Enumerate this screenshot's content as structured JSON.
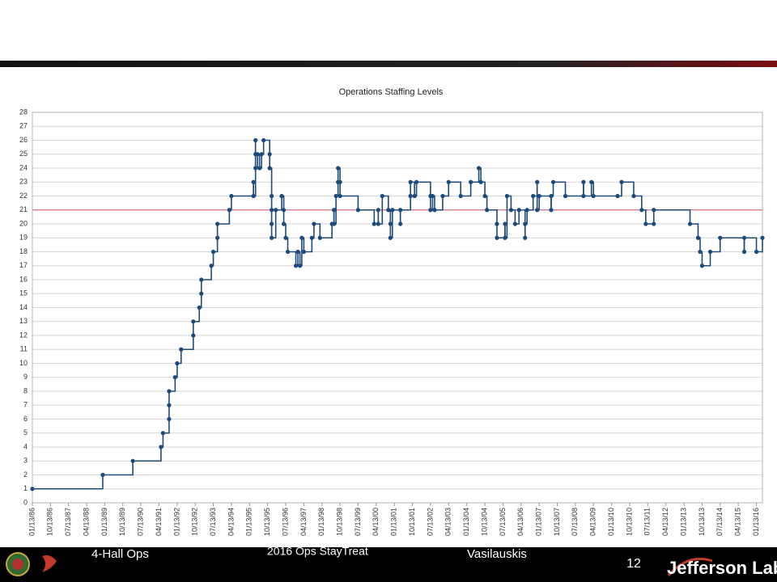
{
  "chart_data": {
    "type": "line",
    "step": true,
    "title": "Operations Staffing Levels",
    "xlim": [
      "1986-01-13",
      "2016-04-13"
    ],
    "xticks": [
      {
        "value": "1986-01-13",
        "label": "01/13/86"
      },
      {
        "value": "1986-10-13",
        "label": "10/13/86"
      },
      {
        "value": "1987-07-13",
        "label": "07/13/87"
      },
      {
        "value": "1988-04-13",
        "label": "04/13/88"
      },
      {
        "value": "1989-01-13",
        "label": "01/13/89"
      },
      {
        "value": "1989-10-13",
        "label": "10/13/89"
      },
      {
        "value": "1990-07-13",
        "label": "07/13/90"
      },
      {
        "value": "1991-04-13",
        "label": "04/13/91"
      },
      {
        "value": "1992-01-13",
        "label": "01/13/92"
      },
      {
        "value": "1992-10-13",
        "label": "10/13/92"
      },
      {
        "value": "1993-07-13",
        "label": "07/13/93"
      },
      {
        "value": "1994-04-13",
        "label": "04/13/94"
      },
      {
        "value": "1995-01-13",
        "label": "01/13/95"
      },
      {
        "value": "1995-10-13",
        "label": "10/13/95"
      },
      {
        "value": "1996-07-13",
        "label": "07/13/96"
      },
      {
        "value": "1997-04-13",
        "label": "04/13/97"
      },
      {
        "value": "1998-01-13",
        "label": "01/13/98"
      },
      {
        "value": "1998-10-13",
        "label": "10/13/98"
      },
      {
        "value": "1999-07-13",
        "label": "07/13/99"
      },
      {
        "value": "2000-04-13",
        "label": "04/13/00"
      },
      {
        "value": "2001-01-13",
        "label": "01/13/01"
      },
      {
        "value": "2001-10-13",
        "label": "10/13/01"
      },
      {
        "value": "2002-07-13",
        "label": "07/13/02"
      },
      {
        "value": "2003-04-13",
        "label": "04/13/03"
      },
      {
        "value": "2004-01-13",
        "label": "01/13/04"
      },
      {
        "value": "2004-10-13",
        "label": "10/13/04"
      },
      {
        "value": "2005-07-13",
        "label": "07/13/05"
      },
      {
        "value": "2006-04-13",
        "label": "04/13/06"
      },
      {
        "value": "2007-01-13",
        "label": "01/13/07"
      },
      {
        "value": "2007-10-13",
        "label": "10/13/07"
      },
      {
        "value": "2008-07-13",
        "label": "07/13/08"
      },
      {
        "value": "2009-04-13",
        "label": "04/13/09"
      },
      {
        "value": "2010-01-13",
        "label": "01/13/10"
      },
      {
        "value": "2010-10-13",
        "label": "10/13/10"
      },
      {
        "value": "2011-07-13",
        "label": "07/13/11"
      },
      {
        "value": "2012-04-13",
        "label": "04/13/12"
      },
      {
        "value": "2013-01-13",
        "label": "01/13/13"
      },
      {
        "value": "2013-10-13",
        "label": "10/13/13"
      },
      {
        "value": "2014-07-13",
        "label": "07/13/14"
      },
      {
        "value": "2015-04-13",
        "label": "04/13/15"
      },
      {
        "value": "2016-01-13",
        "label": "01/13/16"
      }
    ],
    "ylim": [
      0,
      28
    ],
    "yticks": [
      0,
      1,
      2,
      3,
      4,
      5,
      6,
      7,
      8,
      9,
      10,
      11,
      12,
      13,
      14,
      15,
      16,
      17,
      18,
      19,
      20,
      21,
      22,
      23,
      24,
      25,
      26,
      27,
      28
    ],
    "grid": true,
    "reference_line": {
      "value": 21,
      "color": "#e0506a"
    },
    "x": [
      "1986-01-13",
      "1988-12-13",
      "1990-03-13",
      "1991-05-13",
      "1991-06-13",
      "1991-09-13",
      "1991-09-13",
      "1991-09-13",
      "1991-12-13",
      "1992-01-13",
      "1992-03-13",
      "1992-09-13",
      "1992-09-13",
      "1992-12-13",
      "1993-01-13",
      "1993-01-13",
      "1993-06-13",
      "1993-07-13",
      "1993-09-13",
      "1993-09-13",
      "1994-03-13",
      "1994-04-13",
      "1995-03-13",
      "1995-03-13",
      "1995-04-13",
      "1995-04-13",
      "1995-04-13",
      "1995-05-13",
      "1995-06-13",
      "1995-07-13",
      "1995-08-13",
      "1995-11-13",
      "1995-11-13",
      "1995-12-13",
      "1995-12-13",
      "1995-12-13",
      "1995-12-13",
      "1996-02-13",
      "1996-05-13",
      "1996-06-13",
      "1996-06-13",
      "1996-07-13",
      "1996-08-13",
      "1996-12-13",
      "1997-01-13",
      "1997-02-13",
      "1997-03-13",
      "1997-04-13",
      "1997-08-13",
      "1997-09-13",
      "1997-12-13",
      "1998-06-13",
      "1998-07-13",
      "1998-07-13",
      "1998-08-13",
      "1998-09-13",
      "1998-09-13",
      "1998-10-13",
      "1998-10-13",
      "1999-07-13",
      "2000-03-13",
      "2000-05-13",
      "2000-05-13",
      "2000-07-13",
      "2000-10-13",
      "2000-11-13",
      "2000-11-13",
      "2000-12-13",
      "2001-04-13",
      "2001-04-13",
      "2001-09-13",
      "2001-09-13",
      "2001-11-13",
      "2001-12-13",
      "2002-07-13",
      "2002-07-13",
      "2002-08-13",
      "2002-09-13",
      "2003-01-13",
      "2003-04-13",
      "2003-10-13",
      "2004-03-13",
      "2004-07-13",
      "2004-08-13",
      "2004-10-13",
      "2004-11-13",
      "2005-04-13",
      "2005-04-13",
      "2005-08-13",
      "2005-08-13",
      "2005-09-13",
      "2005-11-13",
      "2006-01-13",
      "2006-03-13",
      "2006-06-13",
      "2006-06-13",
      "2006-07-13",
      "2006-10-13",
      "2006-12-13",
      "2006-12-13",
      "2007-01-13",
      "2007-07-13",
      "2007-07-13",
      "2007-08-13",
      "2008-02-13",
      "2008-11-13",
      "2008-11-13",
      "2009-03-13",
      "2009-04-13",
      "2010-04-13",
      "2010-06-13",
      "2010-12-13",
      "2011-04-13",
      "2011-06-13",
      "2011-10-13",
      "2011-10-13",
      "2013-04-13",
      "2013-08-13",
      "2013-09-13",
      "2013-10-13",
      "2014-02-13",
      "2014-07-13",
      "2015-07-13",
      "2015-07-13",
      "2016-01-13",
      "2016-04-13"
    ],
    "series": [
      {
        "color": "#1c4a7a",
        "values": [
          1,
          2,
          3,
          4,
          5,
          6,
          7,
          8,
          9,
          10,
          11,
          12,
          13,
          14,
          15,
          16,
          17,
          18,
          19,
          20,
          21,
          22,
          23,
          22,
          26,
          25,
          24,
          25,
          24,
          25,
          26,
          25,
          24,
          22,
          21,
          20,
          19,
          21,
          22,
          21,
          20,
          19,
          18,
          17,
          18,
          17,
          19,
          18,
          19,
          20,
          19,
          20,
          21,
          20,
          22,
          23,
          24,
          23,
          22,
          21,
          20,
          21,
          20,
          22,
          21,
          20,
          19,
          21,
          20,
          21,
          22,
          23,
          22,
          23,
          22,
          21,
          22,
          21,
          22,
          23,
          22,
          23,
          24,
          23,
          22,
          21,
          20,
          19,
          20,
          19,
          22,
          21,
          20,
          21,
          19,
          20,
          21,
          22,
          23,
          21,
          22,
          21,
          22,
          23,
          22,
          23,
          22,
          23,
          22,
          22,
          23,
          22,
          21,
          20,
          20,
          21,
          20,
          19,
          18,
          17,
          18,
          19,
          18,
          19,
          18,
          19
        ]
      }
    ]
  },
  "footer": {
    "left": "4-Hall Ops",
    "center": "2016 Ops StayTreat",
    "author": "Vasilauskis",
    "page": "12",
    "logo": "Jefferson Lab"
  }
}
